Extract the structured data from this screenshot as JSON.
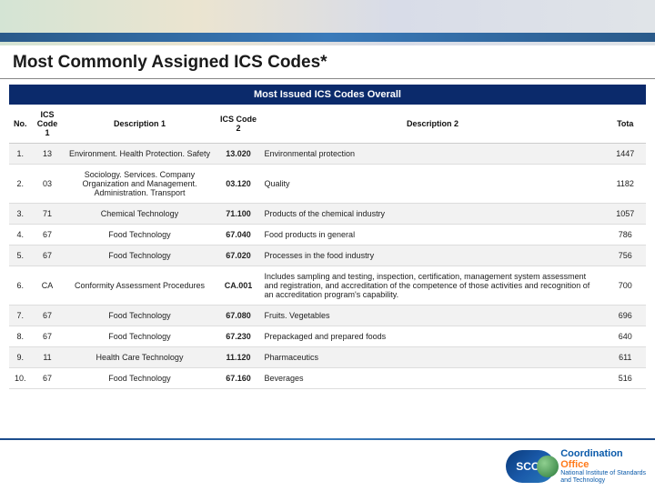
{
  "page": {
    "title": "Most Commonly Assigned ICS Codes*"
  },
  "table": {
    "title": "Most Issued ICS Codes Overall",
    "columns": {
      "no": "No.",
      "code1": "ICS Code 1",
      "desc1": "Description 1",
      "code2": "ICS Code 2",
      "desc2": "Description 2",
      "total": "Tota"
    },
    "rows": [
      {
        "no": "1.",
        "code1": "13",
        "desc1": "Environment. Health Protection. Safety",
        "code2": "13.020",
        "desc2": "Environmental protection",
        "total": "1447"
      },
      {
        "no": "2.",
        "code1": "03",
        "desc1": "Sociology. Services. Company Organization and Management. Administration. Transport",
        "code2": "03.120",
        "desc2": "Quality",
        "total": "1182"
      },
      {
        "no": "3.",
        "code1": "71",
        "desc1": "Chemical Technology",
        "code2": "71.100",
        "desc2": "Products of the chemical industry",
        "total": "1057"
      },
      {
        "no": "4.",
        "code1": "67",
        "desc1": "Food Technology",
        "code2": "67.040",
        "desc2": "Food products in general",
        "total": "786"
      },
      {
        "no": "5.",
        "code1": "67",
        "desc1": "Food Technology",
        "code2": "67.020",
        "desc2": "Processes in the food industry",
        "total": "756"
      },
      {
        "no": "6.",
        "code1": "CA",
        "desc1": "Conformity Assessment Procedures",
        "code2": "CA.001",
        "desc2": "Includes sampling and testing, inspection, certification, management system assessment and registration, and accreditation of the competence of those activities and recognition of an accreditation program's capability.",
        "total": "700"
      },
      {
        "no": "7.",
        "code1": "67",
        "desc1": "Food Technology",
        "code2": "67.080",
        "desc2": "Fruits. Vegetables",
        "total": "696"
      },
      {
        "no": "8.",
        "code1": "67",
        "desc1": "Food Technology",
        "code2": "67.230",
        "desc2": "Prepackaged and prepared foods",
        "total": "640"
      },
      {
        "no": "9.",
        "code1": "11",
        "desc1": "Health Care Technology",
        "code2": "11.120",
        "desc2": "Pharmaceutics",
        "total": "611"
      },
      {
        "no": "10.",
        "code1": "67",
        "desc1": "Food Technology",
        "code2": "67.160",
        "desc2": "Beverages",
        "total": "516"
      }
    ]
  },
  "logo": {
    "badge": "SCO",
    "line1": "Coordination",
    "line2": "Office",
    "line3": "National Institute of Standards",
    "line4": "and Technology"
  },
  "colors": {
    "title_bar_bg": "#0b2a6b",
    "row_alt_bg": "#f2f2f2",
    "text": "#1a1a1a",
    "logo_blue": "#0a5aaa",
    "logo_orange": "#ff7a1a"
  }
}
